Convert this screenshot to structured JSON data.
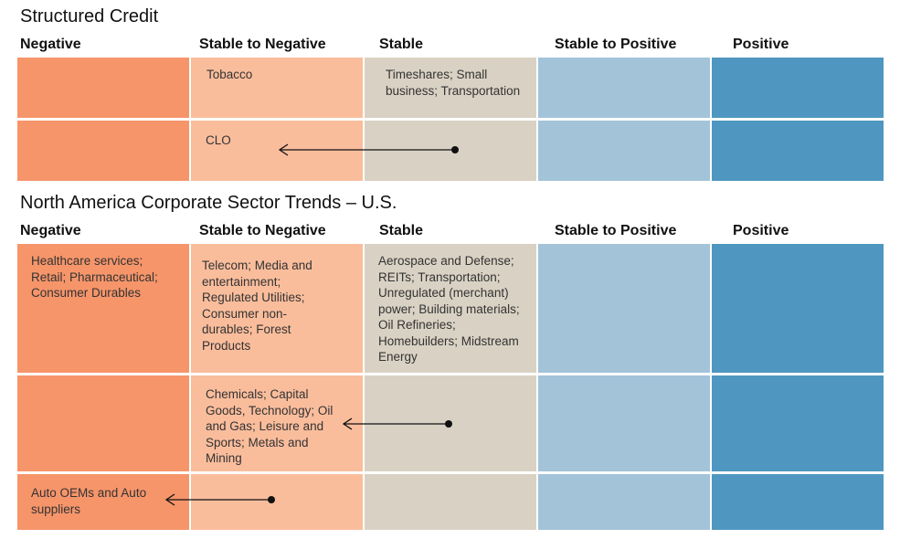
{
  "sections": [
    {
      "title": "Structured Credit",
      "headers": [
        "Negative",
        "Stable to Negative",
        "Stable",
        "Stable to Positive",
        "Positive"
      ],
      "rows": [
        {
          "cells": [
            "",
            "Tobacco",
            "Timeshares; Small business; Transportation",
            "",
            ""
          ]
        },
        {
          "cells": [
            "",
            "CLO",
            "",
            "",
            ""
          ],
          "arrow": {
            "from": "Stable",
            "to": "Stable to Negative",
            "item": "CLO"
          }
        }
      ]
    },
    {
      "title": "North America Corporate Sector Trends – U.S.",
      "headers": [
        "Negative",
        "Stable to Negative",
        "Stable",
        "Stable to Positive",
        "Positive"
      ],
      "rows": [
        {
          "cells": [
            "Healthcare services; Retail; Pharmaceutical; Consumer Durables",
            "Telecom; Media and entertainment; Regulated Utilities; Consumer non-durables; Forest Products",
            "Aerospace and Defense; REITs; Transportation; Unregulated (merchant) power; Building materials; Oil Refineries; Homebuilders; Midstream Energy",
            "",
            ""
          ]
        },
        {
          "cells": [
            "",
            "Chemicals; Capital Goods, Technology; Oil and Gas; Leisure and Sports; Metals and Mining",
            "",
            "",
            ""
          ],
          "arrow": {
            "from": "Stable",
            "to": "Stable to Negative",
            "item": "Chemicals; Capital Goods, Technology; Oil and Gas; Leisure and Sports; Metals and Mining"
          }
        },
        {
          "cells": [
            "Auto OEMs and Auto suppliers",
            "",
            "",
            "",
            ""
          ],
          "arrow": {
            "from": "Stable to Negative",
            "to": "Negative",
            "item": "Auto OEMs and Auto suppliers"
          }
        }
      ]
    }
  ],
  "colors": {
    "negative": "#f6956a",
    "stable_to_negative": "#fabd9c",
    "stable": "#d9d2c4",
    "stable_to_positive": "#a3c3d9",
    "positive": "#4f97c1",
    "arrow": "#111111"
  }
}
